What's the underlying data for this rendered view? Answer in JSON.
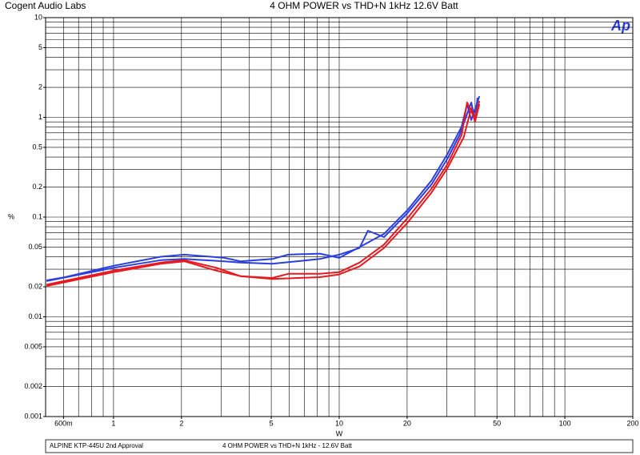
{
  "chart_data": {
    "type": "line",
    "header": "Cogent Audio Labs",
    "title": "4 OHM POWER vs THD+N   1kHz   12.6V Batt",
    "logo": "Ap",
    "y_label": "%",
    "x_label": "W",
    "footer_left": "ALPINE KTP-445U  2nd Approval",
    "footer_right": "4 OHM POWER  vs THD+N    1kHz - 12.6V Batt",
    "log_x": true,
    "log_y": true,
    "grid": true,
    "xlim": [
      0.5,
      200
    ],
    "ylim": [
      0.001,
      10
    ],
    "xticks": [
      {
        "value": 0.6,
        "label": "600m"
      },
      1,
      2,
      5,
      10,
      20,
      50,
      100,
      200
    ],
    "yticks": [
      10,
      5,
      2,
      1,
      0.5,
      0.2,
      0.1,
      0.05,
      0.02,
      0.01,
      0.005,
      0.002,
      0.001
    ],
    "xgrid": [
      0.6,
      0.7,
      0.8,
      0.9,
      1,
      2,
      3,
      4,
      5,
      6,
      7,
      8,
      9,
      10,
      20,
      30,
      40,
      50,
      60,
      70,
      80,
      90,
      100,
      200
    ],
    "ygrid": [
      0.001,
      0.002,
      0.003,
      0.004,
      0.005,
      0.006,
      0.007,
      0.008,
      0.009,
      0.01,
      0.02,
      0.03,
      0.04,
      0.05,
      0.06,
      0.07,
      0.08,
      0.09,
      0.1,
      0.2,
      0.3,
      0.4,
      0.5,
      0.6,
      0.7,
      0.8,
      0.9,
      1,
      2,
      3,
      4,
      5,
      6,
      7,
      8,
      9,
      10
    ],
    "series": [
      {
        "color": "#2b3ee0",
        "x": [
          0.505,
          0.61,
          1,
          1.62,
          2.06,
          3.1,
          3.65,
          5.05,
          5.95,
          8.2,
          10,
          12.3,
          15.8,
          20.1,
          25.7,
          30.2,
          34.9,
          36.9,
          38.5,
          41.8
        ],
        "values": [
          0.0232,
          0.025,
          0.0325,
          0.04,
          0.042,
          0.039,
          0.036,
          0.038,
          0.042,
          0.043,
          0.039,
          0.05,
          0.068,
          0.118,
          0.234,
          0.43,
          0.81,
          1.36,
          0.94,
          1.63
        ]
      },
      {
        "color": "#2b3ee0",
        "x": [
          0.505,
          1,
          1.62,
          2.06,
          3.1,
          3.65,
          5.05,
          8.2,
          10,
          12.3,
          13.4,
          15.8,
          20.1,
          25.7,
          30.2,
          34.2,
          38.5,
          40,
          41
        ],
        "values": [
          0.0228,
          0.031,
          0.037,
          0.038,
          0.036,
          0.035,
          0.034,
          0.038,
          0.042,
          0.049,
          0.073,
          0.063,
          0.11,
          0.214,
          0.386,
          0.67,
          1.41,
          0.94,
          1.57
        ]
      },
      {
        "color": "#e8191e",
        "x": [
          0.505,
          1,
          1.62,
          2.06,
          2.86,
          3.65,
          5.05,
          5.95,
          8.2,
          10,
          12.3,
          15.8,
          20.1,
          25.7,
          30.2,
          34.9,
          36.9,
          39.8,
          41.8
        ],
        "values": [
          0.021,
          0.029,
          0.035,
          0.037,
          0.031,
          0.0256,
          0.0245,
          0.027,
          0.027,
          0.028,
          0.035,
          0.053,
          0.098,
          0.194,
          0.34,
          0.67,
          1.41,
          0.97,
          1.46
        ]
      },
      {
        "color": "#e8191e",
        "x": [
          0.505,
          1,
          1.62,
          2.06,
          2.86,
          3.65,
          5.05,
          8.2,
          10,
          12.3,
          15.8,
          20.1,
          25.7,
          30.2,
          35.6,
          38.5,
          40,
          41.8
        ],
        "values": [
          0.0204,
          0.028,
          0.034,
          0.036,
          0.029,
          0.0256,
          0.024,
          0.025,
          0.0266,
          0.032,
          0.049,
          0.088,
          0.177,
          0.31,
          0.63,
          1.24,
          0.9,
          1.36
        ]
      }
    ]
  }
}
